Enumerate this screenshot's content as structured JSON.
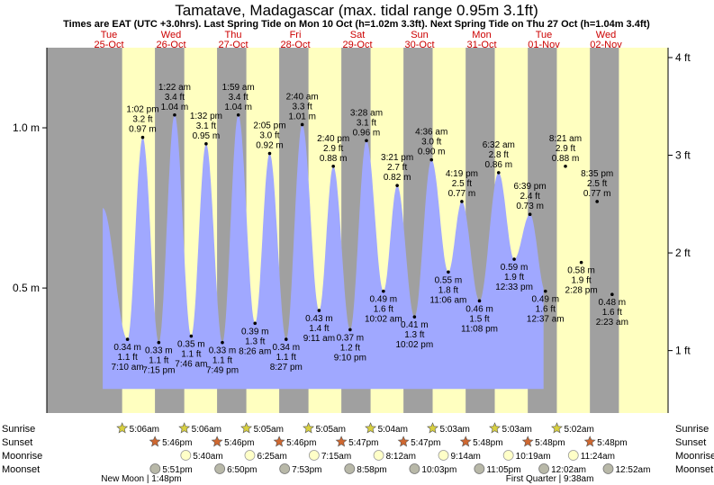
{
  "header": {
    "title": "Tamatave, Madagascar (max. tidal range 0.95m 3.1ft)",
    "subtitle": "Times are EAT (UTC +3.0hrs). Last Spring Tide on Mon 10 Oct (h=1.02m 3.3ft). Next Spring Tide on Thu 27 Oct (h=1.04m 3.4ft)"
  },
  "chart_data": {
    "type": "area",
    "title": "Tamatave, Madagascar (max. tidal range 0.95m 3.1ft)",
    "x_unit": "hours since 25-Oct 00:00 (EAT)",
    "days": [
      {
        "dow": "Tue",
        "date": "25-Oct"
      },
      {
        "dow": "Wed",
        "date": "26-Oct"
      },
      {
        "dow": "Thu",
        "date": "27-Oct"
      },
      {
        "dow": "Fri",
        "date": "28-Oct"
      },
      {
        "dow": "Sat",
        "date": "29-Oct"
      },
      {
        "dow": "Sun",
        "date": "30-Oct"
      },
      {
        "dow": "Mon",
        "date": "31-Oct"
      },
      {
        "dow": "Tue",
        "date": "01-Nov"
      },
      {
        "dow": "Wed",
        "date": "02-Nov"
      }
    ],
    "xlim_hours": [
      -24,
      216
    ],
    "ylim_m": [
      0.11,
      1.25
    ],
    "left_axis": {
      "ticks": [
        0.5,
        1.0
      ],
      "labels": [
        "0.5 m",
        "1.0 m"
      ]
    },
    "right_axis": {
      "ticks_ft": [
        1,
        2,
        3,
        4
      ],
      "labels": [
        "1 ft",
        "2 ft",
        "3 ft",
        "4 ft"
      ]
    },
    "daylight": [
      {
        "rise_h": 5.1,
        "set_h": 17.77
      },
      {
        "rise_h": 29.1,
        "set_h": 41.77
      },
      {
        "rise_h": 53.08,
        "set_h": 65.77
      },
      {
        "rise_h": 77.08,
        "set_h": 89.78
      },
      {
        "rise_h": 101.07,
        "set_h": 113.78
      },
      {
        "rise_h": 125.05,
        "set_h": 137.8
      },
      {
        "rise_h": 149.05,
        "set_h": 161.8
      },
      {
        "rise_h": 173.03,
        "set_h": 185.8
      },
      {
        "rise_h": 197.0,
        "set_h": 216.0
      }
    ],
    "series_start": {
      "h": -2.4,
      "m": 0.75
    },
    "series_end_h": 167.9,
    "tides": [
      {
        "type": "low",
        "h": 7.17,
        "m": 0.34,
        "time": "7:10 am",
        "m_label": "0.34 m",
        "ft_label": "1.1 ft"
      },
      {
        "type": "high",
        "h": 13.03,
        "m": 0.97,
        "time": "1:02 pm",
        "m_label": "0.97 m",
        "ft_label": "3.2 ft"
      },
      {
        "type": "low",
        "h": 19.25,
        "m": 0.33,
        "time": "7:15 pm",
        "m_label": "0.33 m",
        "ft_label": "1.1 ft"
      },
      {
        "type": "high",
        "h": 25.37,
        "m": 1.04,
        "time": "1:22 am",
        "m_label": "1.04 m",
        "ft_label": "3.4 ft"
      },
      {
        "type": "low",
        "h": 31.77,
        "m": 0.35,
        "time": "7:46 am",
        "m_label": "0.35 m",
        "ft_label": "1.1 ft"
      },
      {
        "type": "high",
        "h": 37.53,
        "m": 0.95,
        "time": "1:32 pm",
        "m_label": "0.95 m",
        "ft_label": "3.1 ft"
      },
      {
        "type": "low",
        "h": 43.82,
        "m": 0.33,
        "time": "7:49 pm",
        "m_label": "0.33 m",
        "ft_label": "1.1 ft"
      },
      {
        "type": "high",
        "h": 49.98,
        "m": 1.04,
        "time": "1:59 am",
        "m_label": "1.04 m",
        "ft_label": "3.4 ft"
      },
      {
        "type": "low",
        "h": 56.43,
        "m": 0.39,
        "time": "8:26 am",
        "m_label": "0.39 m",
        "ft_label": "1.3 ft"
      },
      {
        "type": "high",
        "h": 62.08,
        "m": 0.92,
        "time": "2:05 pm",
        "m_label": "0.92 m",
        "ft_label": "3.0 ft"
      },
      {
        "type": "low",
        "h": 68.45,
        "m": 0.34,
        "time": "8:27 pm",
        "m_label": "0.34 m",
        "ft_label": "1.1 ft"
      },
      {
        "type": "high",
        "h": 74.67,
        "m": 1.01,
        "time": "2:40 am",
        "m_label": "1.01 m",
        "ft_label": "3.3 ft"
      },
      {
        "type": "low",
        "h": 81.18,
        "m": 0.43,
        "time": "9:11 am",
        "m_label": "0.43 m",
        "ft_label": "1.4 ft"
      },
      {
        "type": "high",
        "h": 86.67,
        "m": 0.88,
        "time": "2:40 pm",
        "m_label": "0.88 m",
        "ft_label": "2.9 ft"
      },
      {
        "type": "low",
        "h": 93.17,
        "m": 0.37,
        "time": "9:10 pm",
        "m_label": "0.37 m",
        "ft_label": "1.2 ft"
      },
      {
        "type": "high",
        "h": 99.47,
        "m": 0.96,
        "time": "3:28 am",
        "m_label": "0.96 m",
        "ft_label": "3.1 ft"
      },
      {
        "type": "low",
        "h": 106.03,
        "m": 0.49,
        "time": "10:02 am",
        "m_label": "0.49 m",
        "ft_label": "1.6 ft"
      },
      {
        "type": "high",
        "h": 111.35,
        "m": 0.82,
        "time": "3:21 pm",
        "m_label": "0.82 m",
        "ft_label": "2.7 ft"
      },
      {
        "type": "low",
        "h": 118.03,
        "m": 0.41,
        "time": "10:02 pm",
        "m_label": "0.41 m",
        "ft_label": "1.3 ft"
      },
      {
        "type": "high",
        "h": 124.6,
        "m": 0.9,
        "time": "4:36 am",
        "m_label": "0.90 m",
        "ft_label": "3.0 ft"
      },
      {
        "type": "low",
        "h": 131.1,
        "m": 0.55,
        "time": "11:06 am",
        "m_label": "0.55 m",
        "ft_label": "1.8 ft"
      },
      {
        "type": "high",
        "h": 136.32,
        "m": 0.77,
        "time": "4:19 pm",
        "m_label": "0.77 m",
        "ft_label": "2.5 ft"
      },
      {
        "type": "low",
        "h": 143.13,
        "m": 0.46,
        "time": "11:08 pm",
        "m_label": "0.46 m",
        "ft_label": "1.5 ft"
      },
      {
        "type": "high",
        "h": 150.53,
        "m": 0.86,
        "time": "6:32 am",
        "m_label": "0.86 m",
        "ft_label": "2.8 ft"
      },
      {
        "type": "low",
        "h": 156.55,
        "m": 0.59,
        "time": "12:33 pm",
        "m_label": "0.59 m",
        "ft_label": "1.9 ft"
      },
      {
        "type": "high",
        "h": 162.65,
        "m": 0.73,
        "time": "6:39 pm",
        "m_label": "0.73 m",
        "ft_label": "2.4 ft"
      },
      {
        "type": "low",
        "h": 168.62,
        "m": 0.49,
        "time": "12:37 am",
        "m_label": "0.49 m",
        "ft_label": "1.6 ft"
      },
      {
        "type": "high",
        "h": 176.35,
        "m": 0.88,
        "time": "8:21 am",
        "m_label": "0.88 m",
        "ft_label": "2.9 ft"
      },
      {
        "type": "low",
        "h": 182.47,
        "m": 0.58,
        "time": "2:28 pm",
        "m_label": "0.58 m",
        "ft_label": "1.9 ft"
      },
      {
        "type": "high",
        "h": 188.58,
        "m": 0.77,
        "time": "8:35 pm",
        "m_label": "0.77 m",
        "ft_label": "2.5 ft"
      },
      {
        "type": "low",
        "h": 194.38,
        "m": 0.48,
        "time": "2:23 am",
        "m_label": "0.48 m",
        "ft_label": "1.6 ft"
      }
    ],
    "astro": {
      "row_labels": [
        "Sunrise",
        "Sunset",
        "Moonrise",
        "Moonset"
      ],
      "sunrise": [
        {
          "h": 5.1,
          "t": "5:06am"
        },
        {
          "h": 29.1,
          "t": "5:06am"
        },
        {
          "h": 53.08,
          "t": "5:05am"
        },
        {
          "h": 77.08,
          "t": "5:05am"
        },
        {
          "h": 101.07,
          "t": "5:04am"
        },
        {
          "h": 125.05,
          "t": "5:03am"
        },
        {
          "h": 149.05,
          "t": "5:03am"
        },
        {
          "h": 173.03,
          "t": "5:02am"
        }
      ],
      "sunset": [
        {
          "h": 17.77,
          "t": "5:46pm"
        },
        {
          "h": 41.77,
          "t": "5:46pm"
        },
        {
          "h": 65.77,
          "t": "5:46pm"
        },
        {
          "h": 89.78,
          "t": "5:47pm"
        },
        {
          "h": 113.78,
          "t": "5:47pm"
        },
        {
          "h": 137.8,
          "t": "5:48pm"
        },
        {
          "h": 161.8,
          "t": "5:48pm"
        },
        {
          "h": 185.8,
          "t": "5:48pm"
        }
      ],
      "moonrise": [
        {
          "h": 29.67,
          "t": "5:40am"
        },
        {
          "h": 54.42,
          "t": "6:25am"
        },
        {
          "h": 79.25,
          "t": "7:15am"
        },
        {
          "h": 104.2,
          "t": "8:12am"
        },
        {
          "h": 129.23,
          "t": "9:14am"
        },
        {
          "h": 154.32,
          "t": "10:19am"
        },
        {
          "h": 179.4,
          "t": "11:24am"
        }
      ],
      "moonset": [
        {
          "h": 17.85,
          "t": "5:51pm"
        },
        {
          "h": 42.83,
          "t": "6:50pm"
        },
        {
          "h": 67.88,
          "t": "7:53pm"
        },
        {
          "h": 92.97,
          "t": "8:58pm"
        },
        {
          "h": 118.05,
          "t": "10:03pm"
        },
        {
          "h": 143.08,
          "t": "11:05pm"
        },
        {
          "h": 168.03,
          "t": "12:02am"
        },
        {
          "h": 192.87,
          "t": "12:52am"
        }
      ]
    },
    "moon_phases": [
      {
        "text": "New Moon | 1:48pm",
        "h": 12.5
      },
      {
        "text": "First Quarter | 9:38am",
        "h": 170.3
      }
    ]
  }
}
